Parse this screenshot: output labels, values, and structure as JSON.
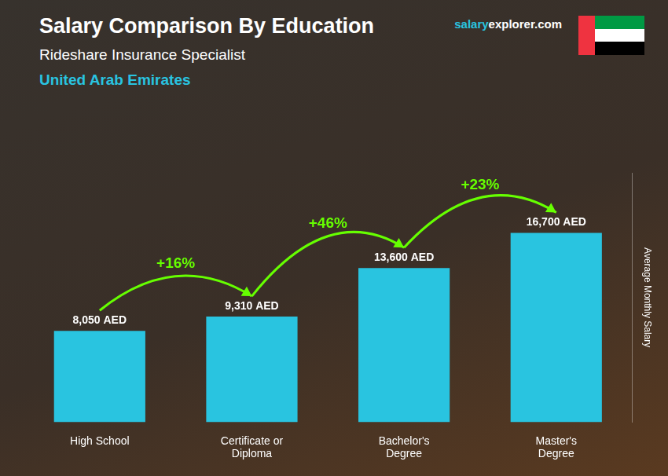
{
  "chart_data": {
    "type": "bar",
    "title": "Salary Comparison By Education",
    "subtitle": [
      "Rideshare Insurance Specialist",
      "United Arab Emirates"
    ],
    "credit": [
      "salary",
      "explorer",
      ".com"
    ],
    "ylabel": "Average Monthly Salary",
    "categories": [
      "High School",
      "Certificate or\nDiploma",
      "Bachelor's\nDegree",
      "Master's\nDegree"
    ],
    "values": [
      8050,
      9310,
      13600,
      16700
    ],
    "value_labels": [
      "8,050 AED",
      "9,310 AED",
      "13,600 AED",
      "16,700 AED"
    ],
    "data_labels": true,
    "annotations": [
      "+16%",
      "+46%",
      "+23%"
    ],
    "color": "#29c4e0",
    "ylim": [
      0,
      22000
    ],
    "grid": false,
    "tick_labels": "x"
  }
}
